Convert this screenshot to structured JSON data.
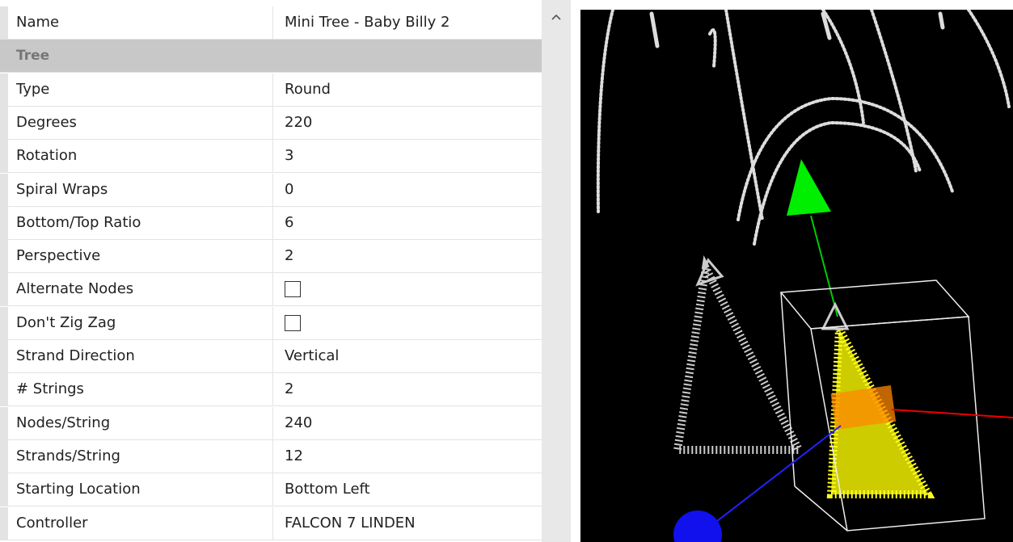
{
  "name_row": {
    "label": "Name",
    "value": "Mini Tree - Baby Billy 2"
  },
  "section": "Tree",
  "rows": [
    {
      "label": "Type",
      "value": "Round"
    },
    {
      "label": "Degrees",
      "value": "220"
    },
    {
      "label": "Rotation",
      "value": "3"
    },
    {
      "label": "Spiral Wraps",
      "value": "0"
    },
    {
      "label": "Bottom/Top Ratio",
      "value": "6"
    },
    {
      "label": "Perspective",
      "value": "2"
    },
    {
      "label": "Alternate Nodes",
      "checked": false
    },
    {
      "label": "Don't Zig Zag",
      "checked": false
    },
    {
      "label": "Strand Direction",
      "value": "Vertical"
    },
    {
      "label": "# Strings",
      "value": "2"
    },
    {
      "label": "Nodes/String",
      "value": "240"
    },
    {
      "label": "Strands/String",
      "value": "12"
    },
    {
      "label": "Starting Location",
      "value": "Bottom Left"
    },
    {
      "label": "Controller",
      "value": "FALCON 7 LINDEN"
    }
  ]
}
